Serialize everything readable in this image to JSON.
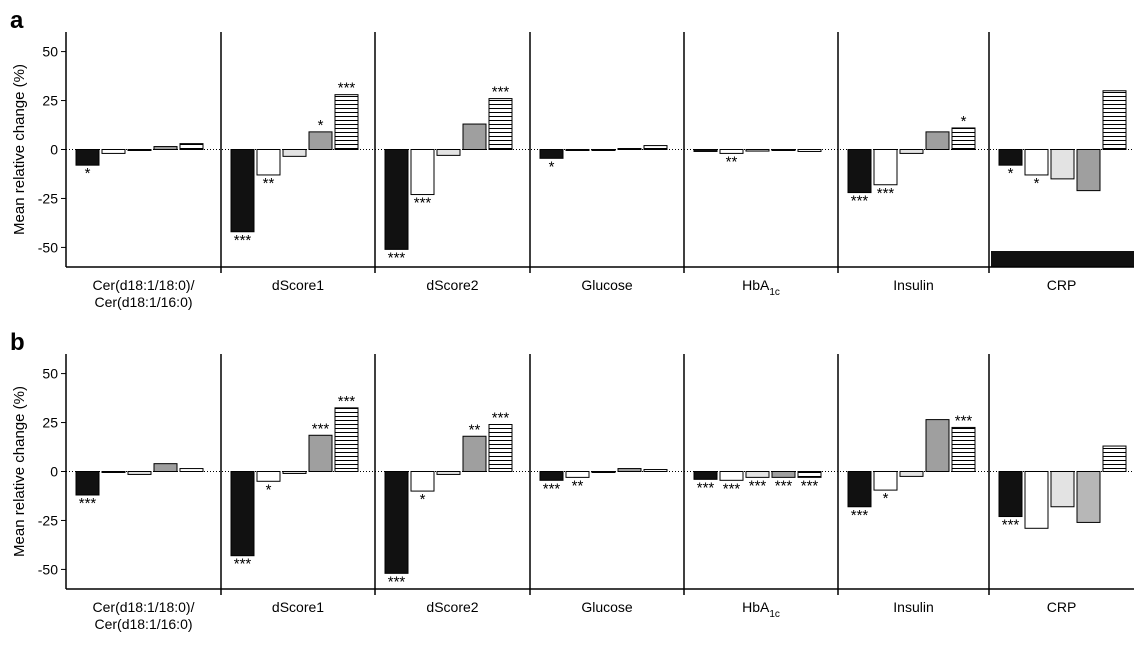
{
  "chart_data": [
    {
      "type": "bar",
      "panel_label": "a",
      "ylabel": "Mean relative change (%)",
      "yticks": [
        50,
        25,
        0,
        -25,
        -50
      ],
      "ytick_labels": [
        "50",
        "25",
        "0",
        "-25",
        "-50"
      ],
      "ylim": [
        -60,
        60
      ],
      "categories": [
        [
          "Cer(d18:1/18:0)/",
          "Cer(d18:1/16:0)"
        ],
        [
          "dScore1"
        ],
        [
          "dScore2"
        ],
        [
          "Glucose"
        ],
        [
          "HbA",
          "1c"
        ],
        [
          "Insulin"
        ],
        [
          "CRP"
        ]
      ],
      "series_styles": [
        "black",
        "white",
        "lightgray",
        "gray",
        "hatched"
      ],
      "values": [
        [
          -8,
          -2,
          -0.5,
          1.5,
          3
        ],
        [
          -42,
          -13,
          -3.5,
          9,
          28
        ],
        [
          -51,
          -23,
          -3,
          13,
          26
        ],
        [
          -4.5,
          -0.5,
          -0.5,
          0.5,
          2
        ],
        [
          -1,
          -2,
          -0.8,
          -0.5,
          -1
        ],
        [
          -22,
          -18,
          -2,
          9,
          11
        ],
        [
          -8,
          -13,
          -15,
          -21,
          30
        ]
      ],
      "annotations": [
        [
          "*",
          "",
          "",
          "",
          ""
        ],
        [
          "***",
          "**",
          "",
          "*",
          "***"
        ],
        [
          "***",
          "***",
          "",
          "",
          "***"
        ],
        [
          "*",
          "",
          "",
          "",
          ""
        ],
        [
          "",
          "**",
          "",
          "",
          ""
        ],
        [
          "***",
          "***",
          "",
          "",
          "*"
        ],
        [
          "*",
          "*",
          "",
          "",
          ""
        ]
      ],
      "clipped_bar": {
        "category_index": 6,
        "value": -290
      }
    },
    {
      "type": "bar",
      "panel_label": "b",
      "ylabel": "Mean relative change (%)",
      "yticks": [
        50,
        25,
        0,
        -25,
        -50
      ],
      "ytick_labels": [
        "50",
        "25",
        "0",
        "-25",
        "-50"
      ],
      "ylim": [
        -60,
        60
      ],
      "categories": [
        [
          "Cer(d18:1/18:0)/",
          "Cer(d18:1/16:0)"
        ],
        [
          "dScore1"
        ],
        [
          "dScore2"
        ],
        [
          "Glucose"
        ],
        [
          "HbA",
          "1c"
        ],
        [
          "Insulin"
        ],
        [
          "CRP"
        ]
      ],
      "series_styles": [
        "black",
        "white",
        "lightgray",
        "gray",
        "hatched"
      ],
      "values": [
        [
          -12,
          -0.5,
          -1.5,
          4,
          1.5
        ],
        [
          -43,
          -5,
          -1,
          18.5,
          32.5
        ],
        [
          -52,
          -10,
          -1.5,
          18,
          24
        ],
        [
          -4.5,
          -3,
          -0.5,
          1.5,
          1
        ],
        [
          -4,
          -4.5,
          -3,
          -3,
          -3
        ],
        [
          -18,
          -9.5,
          -2.5,
          26.5,
          22.5
        ],
        [
          -23,
          -29,
          -18,
          -26,
          13
        ]
      ],
      "annotations": [
        [
          "***",
          "",
          "",
          "",
          ""
        ],
        [
          "***",
          "*",
          "",
          "***",
          "***"
        ],
        [
          "***",
          "*",
          "",
          "**",
          "***"
        ],
        [
          "***",
          "**",
          "",
          "",
          ""
        ],
        [
          "***",
          "***",
          "***",
          "***",
          "***"
        ],
        [
          "***",
          "*",
          "",
          "",
          "***"
        ],
        [
          "***",
          "",
          "",
          "",
          ""
        ]
      ]
    }
  ],
  "colors": {
    "black": "#111111",
    "white": "#ffffff",
    "lightgray": "#e3e3e3",
    "gray": "#9f9f9f",
    "gray_crp_b": "#b7b7b7",
    "stroke": "#000000"
  }
}
